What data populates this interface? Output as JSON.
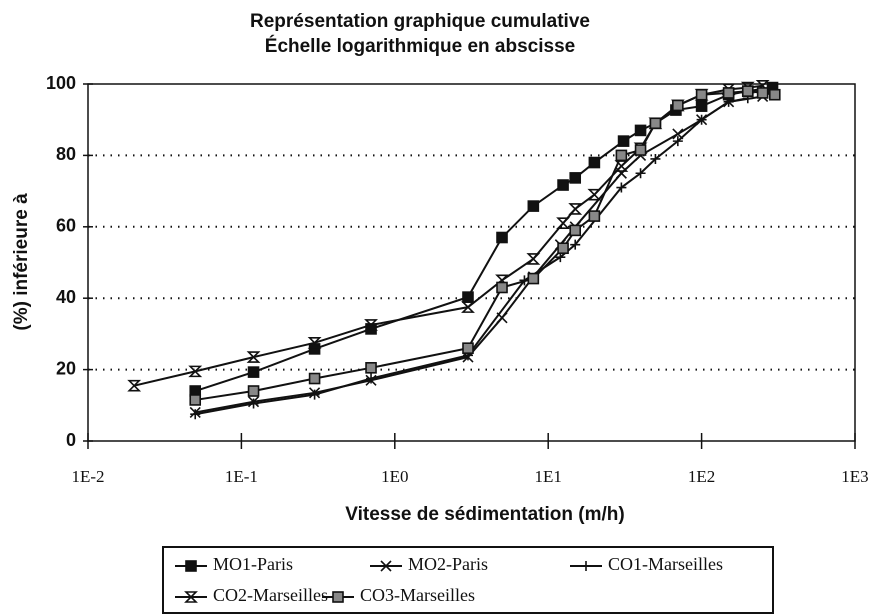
{
  "chart_data": {
    "type": "line",
    "title": [
      "Représentation graphique cumulative",
      "Échelle logarithmique en abscisse"
    ],
    "x_label": "Vitesse de sédimentation (m/h)",
    "y_label": "(%) inférieure à",
    "x_log": true,
    "xlim": [
      0.01,
      1000
    ],
    "xticks": [
      {
        "value": 0.01,
        "label": "1E-2"
      },
      {
        "value": 0.1,
        "label": "1E-1"
      },
      {
        "value": 1,
        "label": "1E0"
      },
      {
        "value": 10,
        "label": "1E1"
      },
      {
        "value": 100,
        "label": "1E2"
      },
      {
        "value": 1000,
        "label": "1E3"
      }
    ],
    "ylim": [
      0,
      100
    ],
    "yticks": [
      0,
      20,
      40,
      60,
      80,
      100
    ],
    "grid": true,
    "legend": "bottom",
    "series": [
      {
        "name": "MO1-Paris",
        "color": "#111",
        "marker": "square",
        "x": [
          0.05,
          0.12,
          0.3,
          0.7,
          3,
          5,
          8,
          12.5,
          15,
          20,
          31,
          40,
          50,
          68,
          100,
          150,
          200,
          290
        ],
        "values": [
          14,
          19.3,
          25.8,
          31.4,
          40.3,
          57,
          65.8,
          71.7,
          73.7,
          78,
          84,
          87,
          89,
          92.7,
          93.8,
          97,
          98,
          99
        ]
      },
      {
        "name": "MO2-Paris",
        "color": "#111",
        "marker": "x",
        "x": [
          0.05,
          0.12,
          0.3,
          0.7,
          3,
          5,
          8,
          12,
          15,
          30,
          40,
          70,
          100,
          150,
          250
        ],
        "values": [
          8,
          11,
          13.5,
          17,
          23.5,
          34.5,
          46,
          55,
          60,
          75,
          80,
          86,
          90,
          95,
          96.5
        ]
      },
      {
        "name": "CO1-Marseilles",
        "color": "#111",
        "marker": "plus",
        "x": [
          0.05,
          0.12,
          0.3,
          0.7,
          3,
          7,
          12,
          15,
          30,
          40,
          50,
          70,
          100,
          150,
          200
        ],
        "values": [
          7.5,
          10.5,
          13,
          17.5,
          24,
          45,
          51.5,
          55,
          71,
          75,
          79,
          84,
          90,
          95,
          96
        ]
      },
      {
        "name": "CO2-Marseilles",
        "color": "#111",
        "marker": "hourglass",
        "x": [
          0.02,
          0.05,
          0.12,
          0.3,
          0.7,
          3,
          5,
          8,
          12.5,
          15,
          20,
          30,
          40,
          50,
          70,
          100,
          150,
          200,
          250
        ],
        "values": [
          15.5,
          19.5,
          23.5,
          27.5,
          32.5,
          37.5,
          45,
          51,
          61,
          65,
          69,
          77,
          82,
          89,
          94,
          97,
          98.5,
          99,
          99.5
        ]
      },
      {
        "name": "CO3-Marseilles",
        "color": "#111",
        "marker": "checker",
        "x": [
          0.05,
          0.12,
          0.3,
          0.7,
          3,
          5,
          8,
          12.5,
          15,
          20,
          30,
          40,
          50,
          70,
          100,
          150,
          200,
          250,
          300
        ],
        "values": [
          11.5,
          14,
          17.5,
          20.5,
          26,
          43,
          45.5,
          54,
          59,
          63,
          80,
          81.5,
          89,
          94,
          97,
          97.5,
          98,
          97.5,
          97
        ]
      }
    ]
  }
}
